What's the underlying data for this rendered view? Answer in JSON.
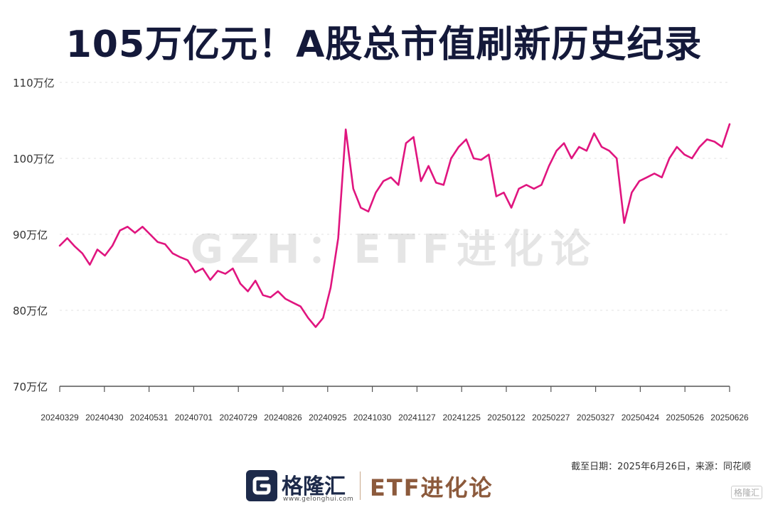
{
  "title": "105万亿元！A股总市值刷新历史纪录",
  "watermark": "GZH：ETF进化论",
  "source": "截至日期：2025年6月26日，来源：同花顺",
  "footer": {
    "logo_name": "格隆汇",
    "logo_url": "www.gelonghui.com",
    "brand": "ETF进化论",
    "badge": "格隆汇"
  },
  "chart_data": {
    "type": "line",
    "title": "105万亿元！A股总市值刷新历史纪录",
    "xlabel": "",
    "ylabel": "",
    "ylim": [
      70,
      110
    ],
    "y_ticks": [
      "70万亿",
      "80万亿",
      "90万亿",
      "100万亿",
      "110万亿"
    ],
    "y_tick_values": [
      70,
      80,
      90,
      100,
      110
    ],
    "x_ticks": [
      "20240329",
      "20240430",
      "20240531",
      "20240701",
      "20240729",
      "20240826",
      "20240925",
      "20241030",
      "20241127",
      "20241225",
      "20250122",
      "20250227",
      "20250327",
      "20250424",
      "20250526",
      "20250626"
    ],
    "grid": "horizontal dashed",
    "color": "#e0157f",
    "series": [
      {
        "values": [
          88.5,
          89.5,
          88.4,
          87.5,
          86.0,
          88.0,
          87.2,
          88.5,
          90.5,
          91.0,
          90.2,
          91.0,
          90.0,
          89.0,
          88.7,
          87.5,
          87.0,
          86.6,
          85.0,
          85.5,
          84.0,
          85.2,
          84.8,
          85.5,
          83.5,
          82.5,
          83.9,
          82.0,
          81.7,
          82.5,
          81.5,
          81.0,
          80.5,
          79.0,
          77.8,
          79.0,
          83.0,
          89.5,
          103.8,
          96.0,
          93.5,
          93.0,
          95.5,
          97.0,
          97.5,
          96.5,
          102.0,
          102.8,
          97.0,
          99.0,
          96.8,
          96.5,
          100.0,
          101.5,
          102.5,
          100.0,
          99.8,
          100.5,
          95.0,
          95.5,
          93.5,
          96.0,
          96.5,
          96.0,
          96.5,
          99.0,
          101.0,
          102.0,
          100.0,
          101.5,
          101.0,
          103.3,
          101.5,
          101.0,
          100.0,
          91.5,
          95.5,
          97.0,
          97.5,
          98.0,
          97.5,
          100.0,
          101.5,
          100.5,
          100.0,
          101.5,
          102.5,
          102.2,
          101.5,
          104.5
        ]
      }
    ]
  }
}
